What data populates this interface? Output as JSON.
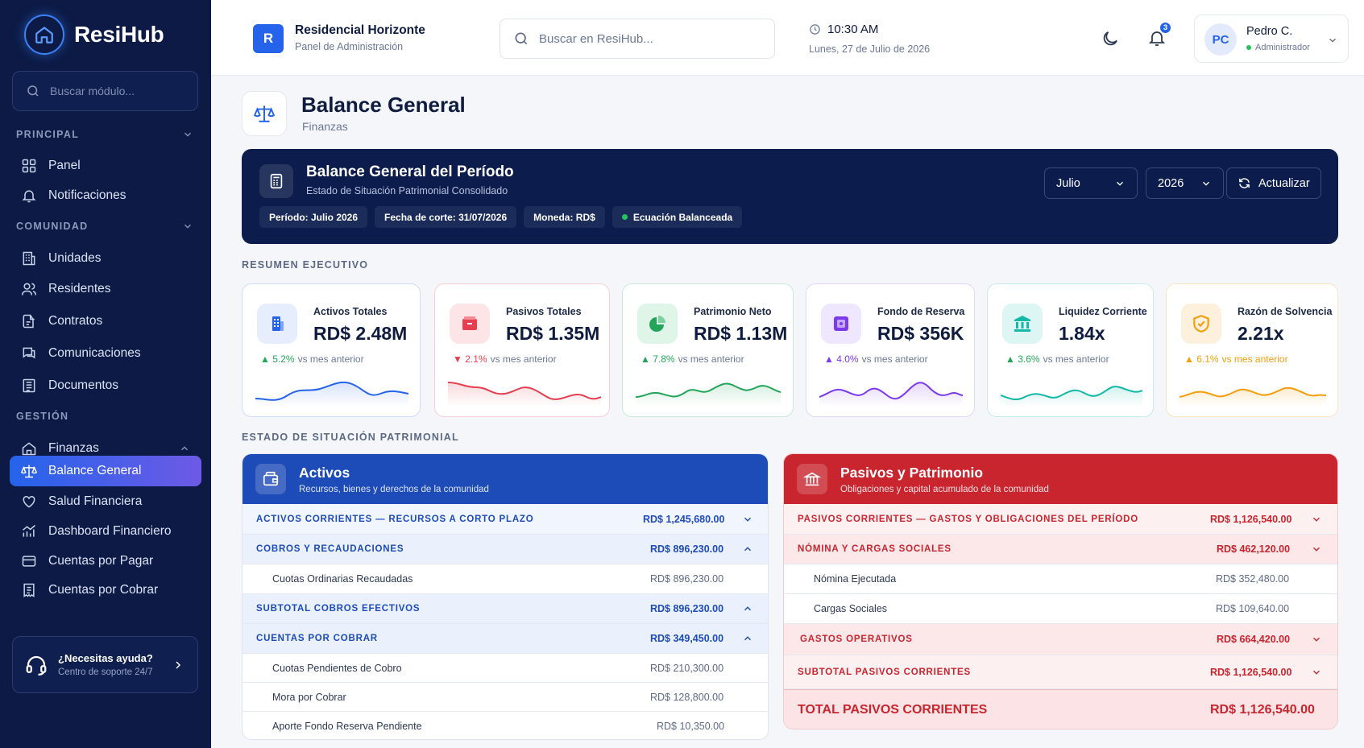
{
  "app": {
    "brand": "ResiHub"
  },
  "sidebar": {
    "search_placeholder": "Buscar módulo...",
    "sections": {
      "principal": "PRINCIPAL",
      "comunidad": "COMUNIDAD",
      "gestion": "GESTIÓN"
    },
    "items": {
      "panel": "Panel",
      "notificaciones": "Notificaciones",
      "unidades": "Unidades",
      "residentes": "Residentes",
      "contratos": "Contratos",
      "comunicaciones": "Comunicaciones",
      "documentos": "Documentos",
      "finanzas": "Finanzas",
      "balance": "Balance General",
      "salud": "Salud Financiera",
      "dashboard": "Dashboard Financiero",
      "pagar": "Cuentas por Pagar",
      "cobrar": "Cuentas por Cobrar"
    },
    "help": {
      "title": "¿Necesitas ayuda?",
      "subtitle": "Centro de soporte 24/7"
    }
  },
  "topbar": {
    "residence_initial": "R",
    "residence_name": "Residencial Horizonte",
    "residence_sub": "Panel de Administración",
    "search_placeholder": "Buscar en ResiHub...",
    "time": "10:30 AM",
    "date": "Lunes, 27 de Julio de 2026",
    "notifications_count": "3",
    "user_initials": "PC",
    "user_name": "Pedro C.",
    "user_role": "Administrador"
  },
  "page": {
    "title": "Balance General",
    "subtitle": "Finanzas"
  },
  "banner": {
    "title": "Balance General del Período",
    "subtitle": "Estado de Situación Patrimonial Consolidado",
    "chips": {
      "periodo": "Período: Julio 2026",
      "corte": "Fecha de corte: 31/07/2026",
      "moneda": "Moneda: RD$",
      "estado": "Ecuación Balanceada"
    },
    "month": "Julio",
    "year": "2026",
    "refresh": "Actualizar"
  },
  "summary": {
    "label": "RESUMEN EJECUTIVO",
    "cards": [
      {
        "label": "Activos Totales",
        "value": "RD$ 2.48M",
        "change": "▲ 5.2%",
        "rest": "vs mes anterior",
        "color": "#2563eb"
      },
      {
        "label": "Pasivos Totales",
        "value": "RD$ 1.35M",
        "change": "▼ 2.1%",
        "rest": "vs mes anterior",
        "color": "#e53e4e"
      },
      {
        "label": "Patrimonio Neto",
        "value": "RD$ 1.13M",
        "change": "▲ 7.8%",
        "rest": "vs mes anterior",
        "color": "#22a559"
      },
      {
        "label": "Fondo de Reserva",
        "value": "RD$ 356K",
        "change": "▲ 4.0%",
        "rest": "vs mes anterior",
        "color": "#7c3aed"
      },
      {
        "label": "Liquidez Corriente",
        "value": "1.84x",
        "change": "▲ 3.6%",
        "rest": "vs mes anterior",
        "color": "#14b8a6"
      },
      {
        "label": "Razón de Solvencia",
        "value": "2.21x",
        "change": "▲ 6.1%",
        "rest": "vs mes anterior",
        "color": "#f59e0b"
      }
    ]
  },
  "statement": {
    "label": "ESTADO DE SITUACIÓN PATRIMONIAL",
    "assets": {
      "title": "Activos",
      "subtitle": "Recursos, bienes y derechos de la comunidad",
      "rows": [
        {
          "label": "ACTIVOS CORRIENTES — RECURSOS A CORTO PLAZO",
          "value": "RD$ 1,245,680.00"
        },
        {
          "label": "COBROS Y RECAUDACIONES",
          "value": "RD$ 896,230.00"
        },
        {
          "label": "Cuotas Ordinarias Recaudadas",
          "value": "RD$ 896,230.00"
        },
        {
          "label": "SUBTOTAL COBROS EFECTIVOS",
          "value": "RD$ 896,230.00"
        },
        {
          "label": "CUENTAS POR COBRAR",
          "value": "RD$ 349,450.00"
        },
        {
          "label": "Cuotas Pendientes de Cobro",
          "value": "RD$ 210,300.00"
        },
        {
          "label": "Mora por Cobrar",
          "value": "RD$ 128,800.00"
        },
        {
          "label": "Aporte Fondo Reserva Pendiente",
          "value": "RD$ 10,350.00"
        }
      ]
    },
    "liabilities": {
      "title": "Pasivos y Patrimonio",
      "subtitle": "Obligaciones y capital acumulado de la comunidad",
      "rows": [
        {
          "label": "PASIVOS CORRIENTES — GASTOS Y OBLIGACIONES DEL PERÍODO",
          "value": "RD$ 1,126,540.00"
        },
        {
          "label": "NÓMINA Y CARGAS SOCIALES",
          "value": "RD$ 462,120.00"
        },
        {
          "label": "Nómina Ejecutada",
          "value": "RD$ 352,480.00"
        },
        {
          "label": "Cargas Sociales",
          "value": "RD$ 109,640.00"
        },
        {
          "label": "GASTOS OPERATIVOS",
          "value": "RD$ 664,420.00"
        },
        {
          "label": "SUBTOTAL PASIVOS CORRIENTES",
          "value": "RD$ 1,126,540.00"
        },
        {
          "label": "TOTAL PASIVOS CORRIENTES",
          "value": "RD$ 1,126,540.00"
        }
      ]
    }
  }
}
